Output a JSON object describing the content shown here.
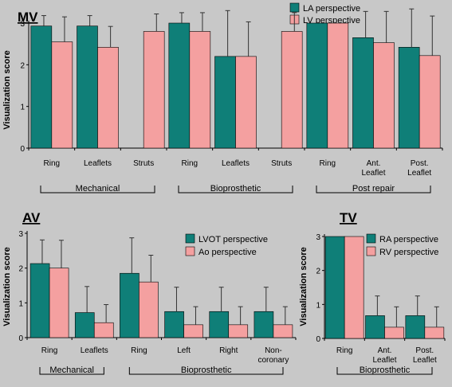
{
  "colors": {
    "series_1": "#0f7f78",
    "series_2": "#f4a0a0",
    "background": "#c8c8c8",
    "axis": "#000000"
  },
  "chart_data": [
    {
      "id": "mv",
      "type": "bar",
      "title": "MV",
      "xlabel": "",
      "ylabel": "Visualization score",
      "ylim": [
        0,
        3
      ],
      "yticks": [
        "0",
        "1",
        "2",
        "3"
      ],
      "legend_position": "top-right",
      "categories": [
        "Ring",
        "Leaflets",
        "Struts",
        "Ring",
        "Leaflets",
        "Struts",
        "Ring",
        "Ant. Leaflet",
        "Post. Leaflet"
      ],
      "category_lines": [
        [
          "Ring"
        ],
        [
          "Leaflets"
        ],
        [
          "Struts"
        ],
        [
          "Ring"
        ],
        [
          "Leaflets"
        ],
        [
          "Struts"
        ],
        [
          "Ring"
        ],
        [
          "Ant.",
          "Leaflet"
        ],
        [
          "Post.",
          "Leaflet"
        ]
      ],
      "groups": [
        {
          "label": "Mechanical",
          "from": 0,
          "to": 2
        },
        {
          "label": "Bioprosthetic",
          "from": 3,
          "to": 5
        },
        {
          "label": "Post repair",
          "from": 6,
          "to": 8
        }
      ],
      "series": [
        {
          "name": "LA perspective",
          "values": [
            2.93,
            2.93,
            null,
            3.0,
            2.2,
            null,
            3.0,
            2.65,
            2.42
          ],
          "errors": [
            0.25,
            0.25,
            null,
            0.25,
            1.1,
            null,
            0.0,
            0.63,
            0.92
          ]
        },
        {
          "name": "LV perspective",
          "values": [
            2.55,
            2.42,
            2.8,
            2.8,
            2.2,
            2.8,
            3.0,
            2.53,
            2.22
          ],
          "errors": [
            0.6,
            0.5,
            0.42,
            0.45,
            0.83,
            0.45,
            0.0,
            0.75,
            0.95
          ]
        }
      ]
    },
    {
      "id": "av",
      "type": "bar",
      "title": "AV",
      "xlabel": "",
      "ylabel": "Visualization score",
      "ylim": [
        0,
        3
      ],
      "yticks": [
        "0",
        "1",
        "2",
        "3"
      ],
      "legend_position": "top-right",
      "categories": [
        "Ring",
        "Leaflets",
        "Ring",
        "Left",
        "Right",
        "Non-coronary"
      ],
      "category_lines": [
        [
          "Ring"
        ],
        [
          "Leaflets"
        ],
        [
          "Ring"
        ],
        [
          "Left"
        ],
        [
          "Right"
        ],
        [
          "Non-",
          "coronary"
        ]
      ],
      "groups": [
        {
          "label": "Mechanical",
          "from": 0,
          "to": 1
        },
        {
          "label": "Bioprosthetic",
          "from": 2,
          "to": 5
        }
      ],
      "series": [
        {
          "name": "LVOT perspective",
          "values": [
            2.13,
            0.72,
            1.85,
            0.75,
            0.75,
            0.75
          ],
          "errors": [
            0.68,
            0.75,
            1.02,
            0.7,
            0.7,
            0.7
          ]
        },
        {
          "name": "Ao perspective",
          "values": [
            2.0,
            0.43,
            1.6,
            0.37,
            0.37,
            0.37
          ],
          "errors": [
            0.8,
            0.52,
            0.77,
            0.52,
            0.52,
            0.52
          ]
        }
      ]
    },
    {
      "id": "tv",
      "type": "bar",
      "title": "TV",
      "xlabel": "",
      "ylabel": "Visualization score",
      "ylim": [
        0,
        3
      ],
      "yticks": [
        "0",
        "1",
        "2",
        "3"
      ],
      "legend_position": "top-right",
      "categories": [
        "Ring",
        "Ant. Leaflet",
        "Post. Leaflet"
      ],
      "category_lines": [
        [
          "Ring"
        ],
        [
          "Ant.",
          "Leaflet"
        ],
        [
          "Post.",
          "Leaflet"
        ]
      ],
      "groups": [
        {
          "label": "Bioprosthetic",
          "from": 0,
          "to": 2
        }
      ],
      "series": [
        {
          "name": "RA perspective",
          "values": [
            3.0,
            0.67,
            0.67
          ],
          "errors": [
            0.0,
            0.58,
            0.58
          ]
        },
        {
          "name": "RV perspective",
          "values": [
            3.0,
            0.33,
            0.33
          ],
          "errors": [
            0.0,
            0.6,
            0.6
          ]
        }
      ]
    }
  ]
}
